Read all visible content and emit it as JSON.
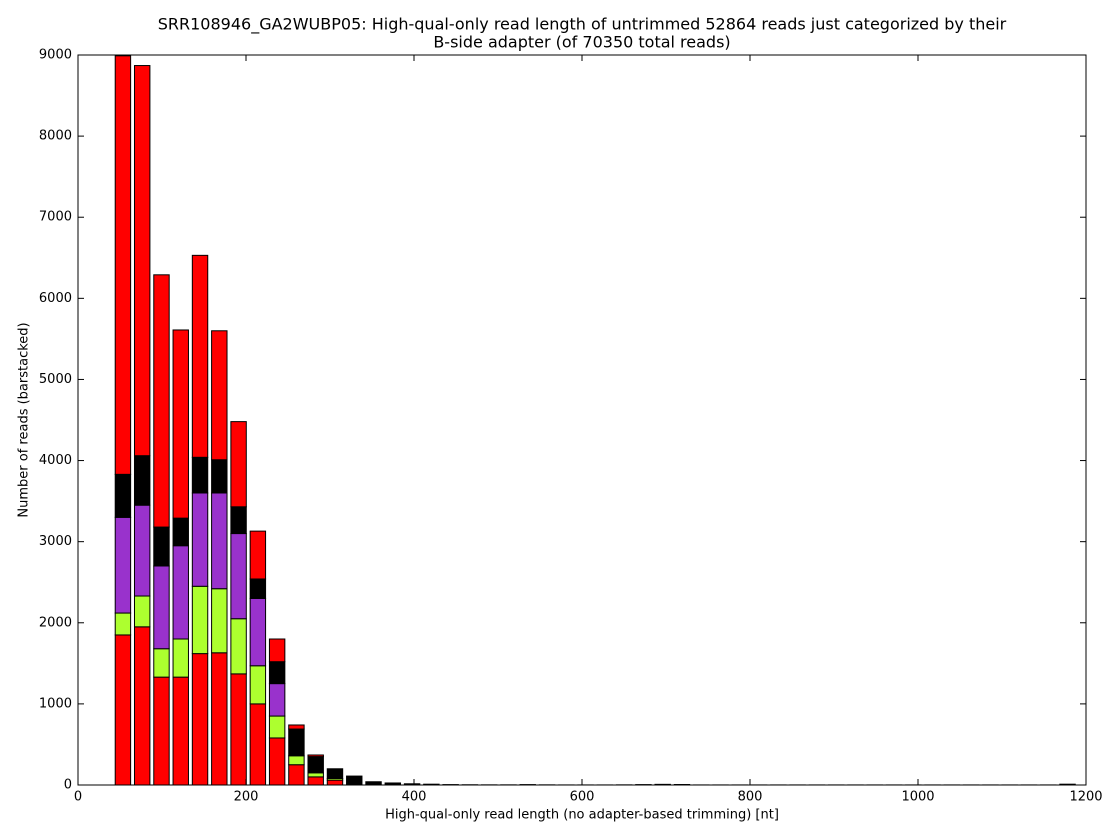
{
  "chart_data": {
    "type": "histogram",
    "title": [
      "SRR108946_GA2WUBP05: High-qual-only read length of untrimmed 52864 reads just categorized by their",
      "B-side adapter (of 70350 total reads)"
    ],
    "xlabel": "High-qual-only read length (no adapter-based trimming) [nt]",
    "ylabel": "Number of reads (barstacked)",
    "bins": [
      42.0,
      64.95,
      87.9,
      110.85,
      133.8,
      156.75,
      179.7,
      202.65,
      225.6,
      248.55,
      271.5,
      294.45,
      317.4,
      340.35,
      363.3,
      386.25,
      409.2,
      432.15,
      455.1,
      478.05,
      501.0,
      523.95,
      546.9,
      569.85,
      592.8,
      615.75,
      638.7,
      661.65,
      684.6,
      707.55,
      730.5,
      753.45,
      776.4,
      799.35,
      822.3,
      845.25,
      868.2,
      891.15,
      914.1,
      937.05,
      960.0,
      982.95,
      1005.9,
      1028.85,
      1051.8,
      1074.75,
      1097.7,
      1120.65,
      1143.6,
      1166.55,
      1189.5
    ],
    "series": [
      {
        "color": "#ff0000",
        "values": [
          1850,
          1950,
          1330,
          1330,
          1620,
          1630,
          1370,
          1000,
          580,
          250,
          100,
          60,
          0,
          0,
          0,
          0,
          0,
          0,
          0,
          0,
          0,
          0,
          0,
          0,
          0,
          0,
          0,
          0,
          0,
          0,
          0,
          0,
          0,
          0,
          0,
          0,
          0,
          0,
          0,
          0,
          0,
          0,
          0,
          0,
          0,
          0,
          0,
          0,
          0,
          0
        ]
      },
      {
        "color": "#adff2f",
        "values": [
          270,
          380,
          350,
          470,
          830,
          790,
          680,
          470,
          270,
          110,
          50,
          20,
          0,
          0,
          0,
          0,
          0,
          0,
          0,
          0,
          0,
          0,
          0,
          0,
          0,
          0,
          0,
          0,
          0,
          0,
          0,
          0,
          0,
          0,
          0,
          0,
          0,
          0,
          0,
          0,
          0,
          0,
          0,
          0,
          0,
          0,
          0,
          0,
          0,
          0
        ]
      },
      {
        "color": "#9932cc",
        "values": [
          1180,
          1120,
          1020,
          1150,
          1150,
          1180,
          1050,
          830,
          400,
          0,
          0,
          0,
          0,
          0,
          0,
          0,
          0,
          0,
          0,
          0,
          0,
          0,
          0,
          0,
          0,
          0,
          0,
          0,
          0,
          0,
          0,
          0,
          0,
          0,
          0,
          0,
          0,
          0,
          0,
          0,
          0,
          0,
          0,
          0,
          0,
          0,
          0,
          0,
          0,
          0
        ]
      },
      {
        "color": "#000000",
        "values": [
          530,
          610,
          480,
          340,
          440,
          410,
          330,
          240,
          270,
          330,
          200,
          120,
          110,
          40,
          25,
          15,
          10,
          5,
          3,
          2,
          2,
          5,
          2,
          1,
          1,
          1,
          2,
          5,
          8,
          6,
          1,
          1,
          1,
          1,
          1,
          1,
          1,
          1,
          1,
          1,
          1,
          1,
          1,
          1,
          1,
          1,
          1,
          1,
          1,
          10
        ]
      },
      {
        "color": "#ff0000",
        "values": [
          5160,
          4810,
          3110,
          2320,
          2490,
          1590,
          1050,
          590,
          280,
          50,
          20,
          0,
          0,
          0,
          0,
          0,
          0,
          0,
          0,
          0,
          0,
          0,
          0,
          0,
          0,
          0,
          0,
          0,
          0,
          0,
          0,
          0,
          0,
          0,
          0,
          0,
          0,
          0,
          0,
          0,
          0,
          0,
          0,
          0,
          0,
          0,
          0,
          0,
          0,
          0
        ]
      }
    ],
    "xlim": [
      0,
      1200
    ],
    "xticks": [
      0,
      200,
      400,
      600,
      800,
      1000,
      1200
    ],
    "ylim": [
      0,
      9000
    ],
    "yticks": [
      0,
      1000,
      2000,
      3000,
      4000,
      5000,
      6000,
      7000,
      8000,
      9000
    ],
    "grid": false
  }
}
